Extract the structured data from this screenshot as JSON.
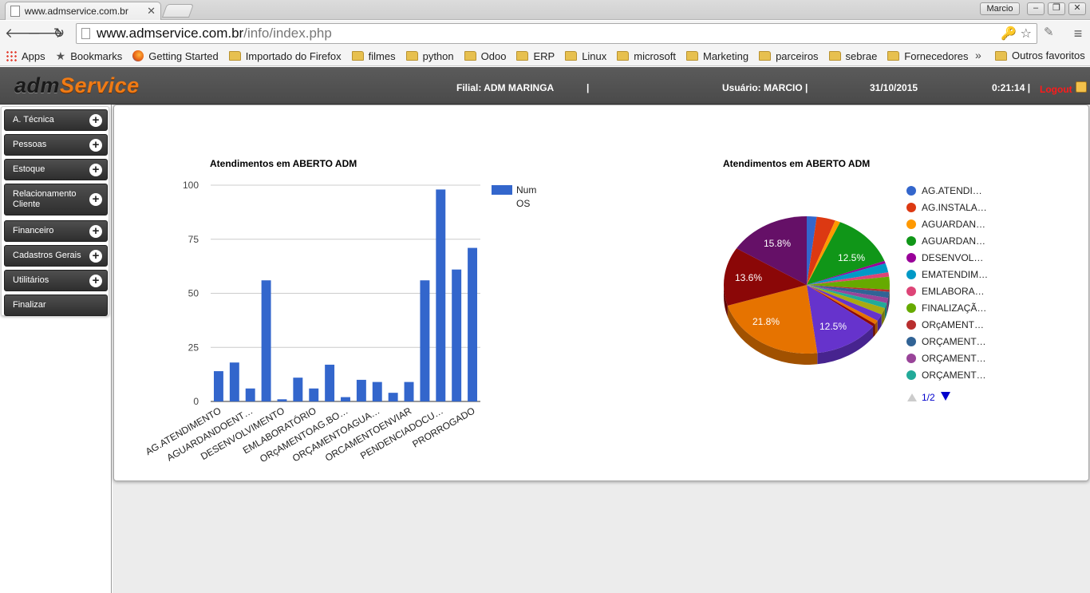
{
  "browser": {
    "tab_title": "www.admservice.com.br",
    "window_user": "Marcio",
    "url_host": "www.admservice.com.br",
    "url_path": "/info/index.php",
    "bookmarks": [
      {
        "label": "Apps",
        "icon": "apps-icon"
      },
      {
        "label": "Bookmarks",
        "icon": "star-icon"
      },
      {
        "label": "Getting Started",
        "icon": "firefox-icon"
      },
      {
        "label": "Importado do Firefox",
        "icon": "folder-icon"
      },
      {
        "label": "filmes",
        "icon": "folder-icon"
      },
      {
        "label": "python",
        "icon": "folder-icon"
      },
      {
        "label": "Odoo",
        "icon": "folder-icon"
      },
      {
        "label": "ERP",
        "icon": "folder-icon"
      },
      {
        "label": "Linux",
        "icon": "folder-icon"
      },
      {
        "label": "microsoft",
        "icon": "folder-icon"
      },
      {
        "label": "Marketing",
        "icon": "folder-icon"
      },
      {
        "label": "parceiros",
        "icon": "folder-icon"
      },
      {
        "label": "sebrae",
        "icon": "folder-icon"
      },
      {
        "label": "Fornecedores",
        "icon": "folder-icon"
      }
    ],
    "more_bookmarks": "»",
    "other_bookmarks": "Outros favoritos"
  },
  "header": {
    "logo_part1": "adm",
    "logo_part2": "Service",
    "filial": "Filial: ADM MARINGA",
    "sep": "|",
    "usuario": "Usuário: MARCIO |",
    "date": "31/10/2015",
    "time": "0:21:14 |",
    "logout": "Logout"
  },
  "sidebar": {
    "items": [
      {
        "label": "A. Técnica",
        "expandable": true
      },
      {
        "label": "Pessoas",
        "expandable": true
      },
      {
        "label": "Estoque",
        "expandable": true
      },
      {
        "label": "Relacionamento Cliente",
        "expandable": true
      },
      {
        "label": "Financeiro",
        "expandable": true
      },
      {
        "label": "Cadastros Gerais",
        "expandable": true
      },
      {
        "label": "Utilitários",
        "expandable": true
      },
      {
        "label": "Finalizar",
        "expandable": false
      }
    ]
  },
  "chart_data": [
    {
      "type": "bar",
      "title": "Atendimentos em ABERTO ADM",
      "legend": [
        "Num",
        "OS"
      ],
      "legend_position": "right",
      "ylim": [
        0,
        100
      ],
      "yticks": [
        0,
        25,
        50,
        75,
        100
      ],
      "color": "#3366cc",
      "values": [
        14,
        18,
        6,
        56,
        1,
        11,
        6,
        17,
        2,
        10,
        9,
        4,
        9,
        56,
        98,
        61,
        71
      ],
      "tick_labels": [
        "AG.ATENDIMENTO",
        "AGUARDANDOENT…",
        "DESENVOLVIMENTO",
        "EMLABORATÓRIO",
        "ORçAMENTOAG.BO…",
        "ORÇAMENTOAGUA…",
        "ORCAMENTOENVIAR",
        "PENDENCIADOCU…",
        "PRORROGADO"
      ],
      "grid": true
    },
    {
      "type": "pie",
      "title": "Atendimentos em ABERTO ADM",
      "slice_labels": [
        "15.8%",
        "12.5%",
        "13.6%",
        "21.8%",
        "12.5%"
      ],
      "slices": [
        {
          "name": "AG.ATENDI…",
          "value": 1.9,
          "color": "#3366cc"
        },
        {
          "name": "AG.INSTALA…",
          "value": 3.6,
          "color": "#dc3912"
        },
        {
          "name": "AGUARDAN…",
          "value": 1.0,
          "color": "#ff9900"
        },
        {
          "name": "AGUARDAN…",
          "value": 12.5,
          "color": "#109618"
        },
        {
          "name": "DESENVOL…",
          "value": 0.6,
          "color": "#990099"
        },
        {
          "name": "EMATENDIM…",
          "value": 2.1,
          "color": "#0099c6"
        },
        {
          "name": "EMLABORA…",
          "value": 1.0,
          "color": "#dd4477"
        },
        {
          "name": "FINALIZAÇÃ…",
          "value": 3.0,
          "color": "#66aa00"
        },
        {
          "name": "ORçAMENT…",
          "value": 0.5,
          "color": "#b82e2e"
        },
        {
          "name": "ORÇAMENT…",
          "value": 1.4,
          "color": "#316395"
        },
        {
          "name": "ORÇAMENT…",
          "value": 1.2,
          "color": "#994499"
        },
        {
          "name": "ORÇAMENT…",
          "value": 1.2,
          "color": "#22aa99"
        },
        {
          "name": "",
          "value": 1.6,
          "color": "#aaaa11"
        },
        {
          "name": "",
          "value": 1.6,
          "color": "#6633cc"
        },
        {
          "name": "",
          "value": 0.9,
          "color": "#e67300"
        },
        {
          "name": "",
          "value": 0.6,
          "color": "#8b0707"
        },
        {
          "name": "",
          "value": 12.5,
          "color": "#6633cc"
        },
        {
          "name": "",
          "value": 21.8,
          "color": "#e67300"
        },
        {
          "name": "",
          "value": 13.6,
          "color": "#8b0707"
        },
        {
          "name": "",
          "value": 15.8,
          "color": "#651067"
        }
      ],
      "legend_page": "1/2",
      "legend_position": "right"
    }
  ]
}
